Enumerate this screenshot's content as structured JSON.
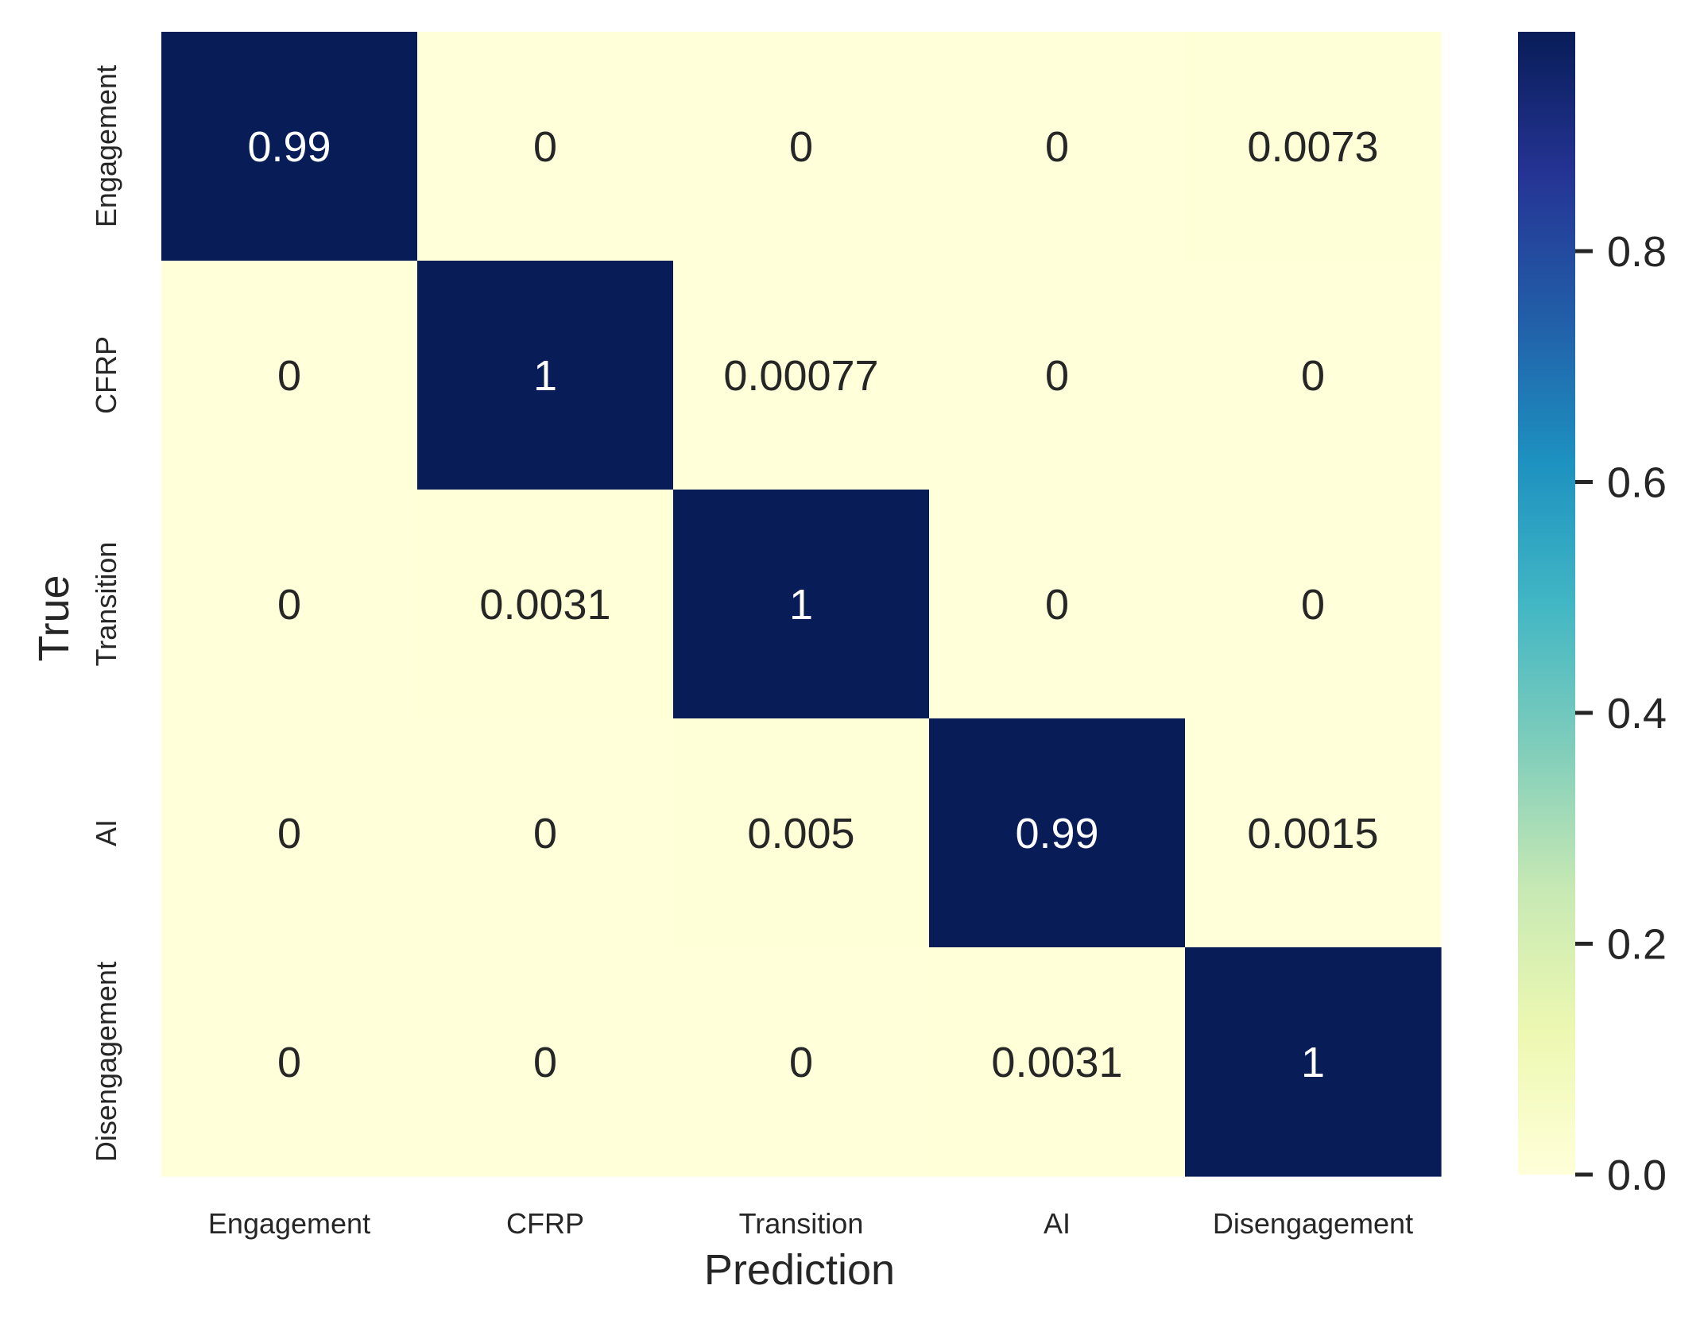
{
  "chart_data": {
    "type": "heatmap",
    "xlabel": "Prediction",
    "ylabel": "True",
    "x_categories": [
      "Engagement",
      "CFRP",
      "Transition",
      "AI",
      "Disengagement"
    ],
    "y_categories": [
      "Engagement",
      "CFRP",
      "Transition",
      "AI",
      "Disengagement"
    ],
    "values": [
      [
        0.99,
        0,
        0,
        0,
        0.0073
      ],
      [
        0,
        1,
        0.00077,
        0,
        0
      ],
      [
        0,
        0.0031,
        1,
        0,
        0
      ],
      [
        0,
        0,
        0.005,
        0.99,
        0.0015
      ],
      [
        0,
        0,
        0,
        0.0031,
        1
      ]
    ],
    "annotations": [
      [
        "0.99",
        "0",
        "0",
        "0",
        "0.0073"
      ],
      [
        "0",
        "1",
        "0.00077",
        "0",
        "0"
      ],
      [
        "0",
        "0.0031",
        "1",
        "0",
        "0"
      ],
      [
        "0",
        "0",
        "0.005",
        "0.99",
        "0.0015"
      ],
      [
        "0",
        "0",
        "0",
        "0.0031",
        "1"
      ]
    ],
    "colormap": "YlGnBu",
    "colormap_stops": [
      "#ffffd9",
      "#edf8b1",
      "#c7e9b4",
      "#7fcdbb",
      "#41b6c4",
      "#1d91c0",
      "#225ea8",
      "#253494",
      "#081d58"
    ],
    "colorbar": {
      "range": [
        0,
        0.99
      ],
      "ticks": [
        0.0,
        0.2,
        0.4,
        0.6,
        0.8
      ],
      "tick_labels": [
        "0.0",
        "0.2",
        "0.4",
        "0.6",
        "0.8"
      ]
    },
    "annotation_colors": {
      "light_text": "#ffffff",
      "dark_text": "#262626"
    }
  }
}
